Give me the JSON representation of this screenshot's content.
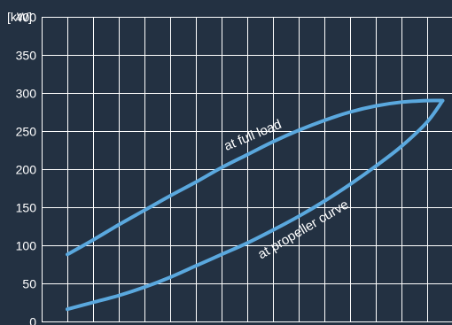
{
  "chart_data": {
    "type": "line",
    "ylabel": "[kW]",
    "ylim": [
      0,
      400
    ],
    "yticks": [
      0,
      50,
      100,
      150,
      200,
      250,
      300,
      350,
      400
    ],
    "ytick_labels": [
      "0",
      "50",
      "100",
      "150",
      "200",
      "250",
      "300",
      "350",
      "400"
    ],
    "xlim": [
      0,
      16.5
    ],
    "x_gridlines": 16,
    "grid": true,
    "xtick_labels_shown": false,
    "background_color": "#233142",
    "grid_color": "#ffffff",
    "series": [
      {
        "name": "at full load",
        "color": "#5aa8de",
        "x": [
          1,
          2,
          3,
          4,
          5,
          6,
          7,
          8,
          9,
          10,
          11,
          12,
          13,
          14,
          15,
          15.6
        ],
        "y": [
          88,
          107,
          127,
          146,
          165,
          183,
          202,
          219,
          236,
          251,
          264,
          275,
          283,
          288,
          290,
          290
        ]
      },
      {
        "name": "at propeller curve",
        "color": "#5aa8de",
        "x": [
          1,
          2,
          3,
          4,
          5,
          6,
          7,
          8,
          9,
          10,
          11,
          12,
          13,
          14,
          15,
          15.6
        ],
        "y": [
          16,
          25,
          34,
          45,
          58,
          73,
          88,
          103,
          120,
          138,
          158,
          180,
          204,
          230,
          262,
          290
        ]
      }
    ],
    "annotations": [
      {
        "text": "at full load",
        "series": 0,
        "at_x": 10
      },
      {
        "text": "at propeller curve",
        "series": 1,
        "at_x": 10.5
      }
    ]
  }
}
